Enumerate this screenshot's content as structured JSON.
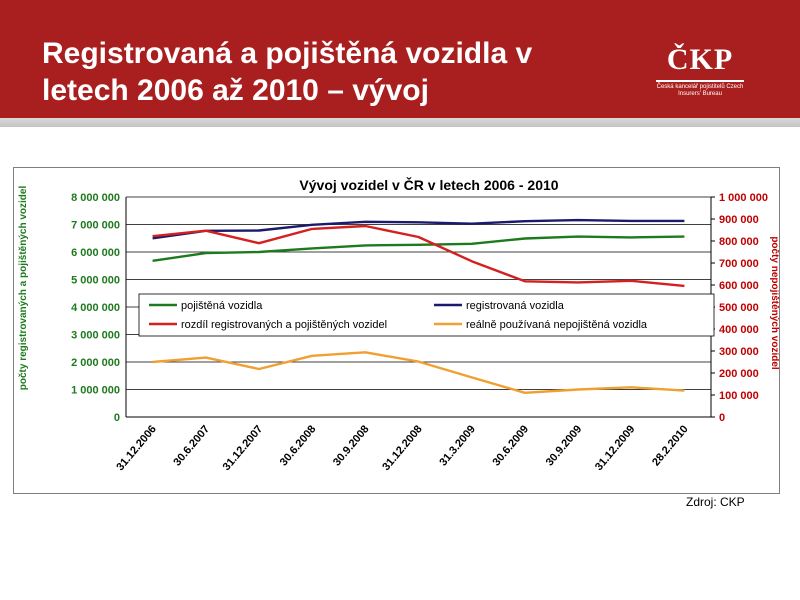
{
  "slide": {
    "title_line1": "Registrovaná a pojištěná vozidla v",
    "title_line2": "letech 2006 až 2010 – vývoj",
    "logo_text": "ČKP",
    "logo_subtitle": "Česká kancelář pojistitelů Czech Insurers' Bureau",
    "source": "Zdroj: CKP",
    "colors": {
      "header": "#a91f1f",
      "stripe": "#cccccc"
    }
  },
  "chart_data": {
    "type": "line",
    "title": "Vývoj vozidel v ČR v letech 2006 - 2010",
    "ylabel": "počty registrovaných a pojištěných vozidel",
    "y2label": "počty nepojištěných vozidel",
    "categories": [
      "31.12.2006",
      "30.6.2007",
      "31.12.2007",
      "30.6.2008",
      "30.9.2008",
      "31.12.2008",
      "31.3.2009",
      "30.6.2009",
      "30.9.2009",
      "31.12.2009",
      "28.2.2010"
    ],
    "ylim": [
      0,
      8000000
    ],
    "y2lim": [
      0,
      1000000
    ],
    "yticks": [
      "0",
      "1 000 000",
      "2 000 000",
      "3 000 000",
      "4 000 000",
      "5 000 000",
      "6 000 000",
      "7 000 000",
      "8 000 000"
    ],
    "y2ticks": [
      "0",
      "100 000",
      "200 000",
      "300 000",
      "400 000",
      "500 000",
      "600 000",
      "700 000",
      "800 000",
      "900 000",
      "1 000 000"
    ],
    "grid": true,
    "legend_position": "middle",
    "series": [
      {
        "name": "pojištěná vozidla",
        "axis": "left",
        "color": "#1e7a1e",
        "values": [
          5680000,
          5960000,
          6000000,
          6130000,
          6240000,
          6260000,
          6300000,
          6490000,
          6560000,
          6530000,
          6560000
        ]
      },
      {
        "name": "registrovaná vozidla",
        "axis": "left",
        "color": "#1a1a6e",
        "values": [
          6500000,
          6770000,
          6780000,
          6990000,
          7100000,
          7080000,
          7030000,
          7120000,
          7160000,
          7130000,
          7130000
        ]
      },
      {
        "name": "rozdíl registrovaných a pojištěných vozidel",
        "axis": "right",
        "color": "#d42020",
        "values": [
          822000,
          847000,
          790000,
          855000,
          868000,
          818000,
          708000,
          617000,
          612000,
          619000,
          596000
        ]
      },
      {
        "name": "reálně používaná nepojištěná vozidla",
        "axis": "right",
        "color": "#f0a030",
        "values": [
          250000,
          270000,
          218000,
          278000,
          294000,
          252000,
          180000,
          110000,
          125000,
          135000,
          120000
        ]
      }
    ]
  }
}
